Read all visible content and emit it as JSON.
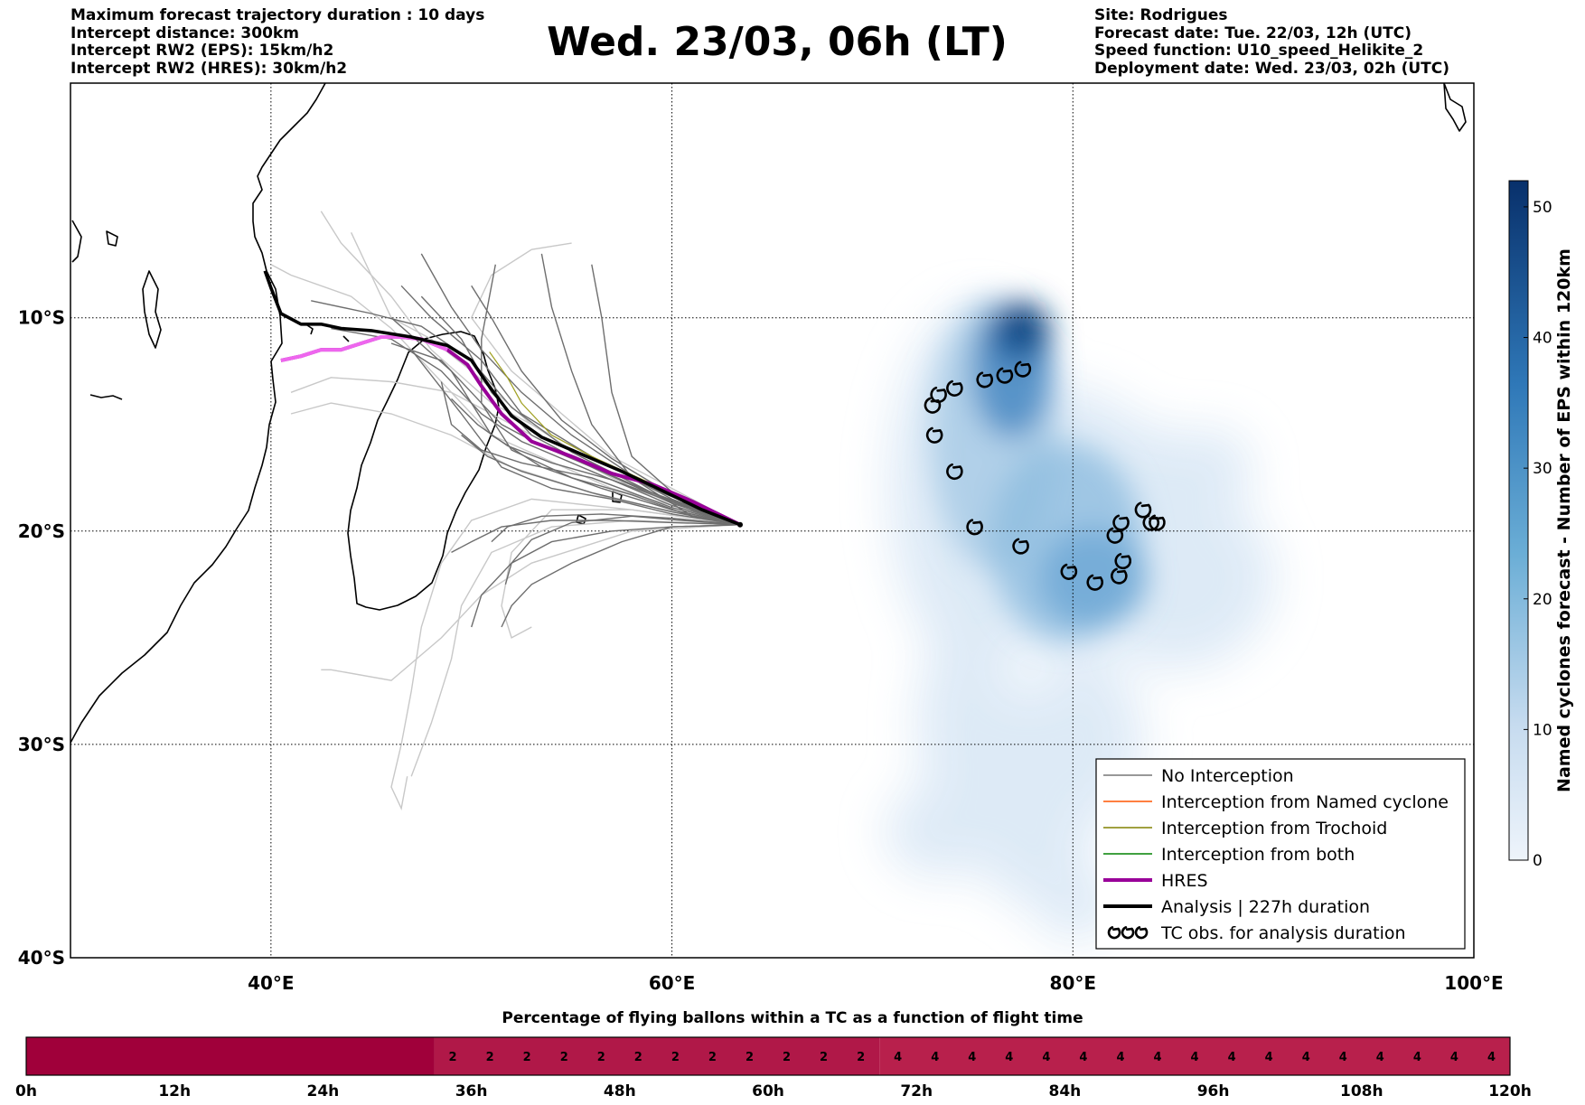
{
  "header": {
    "left_lines": [
      "Maximum forecast trajectory duration : 10 days",
      "Intercept distance: 300km",
      "Intercept RW2 (EPS):  15km/h2",
      "Intercept RW2 (HRES): 30km/h2"
    ],
    "title": "Wed. 23/03, 06h (LT)",
    "right_lines": [
      "Site: Rodrigues",
      "Forecast date: Tue. 22/03, 12h (UTC)",
      "Speed function: U10_speed_Helikite_2",
      "Deployment date: Wed. 23/03, 02h (UTC)"
    ]
  },
  "chart_data": {
    "type": "map",
    "xlim": [
      30,
      100
    ],
    "ylim": [
      -40,
      1
    ],
    "x_ticks": [
      {
        "value": 40,
        "label": "40°E"
      },
      {
        "value": 60,
        "label": "60°E"
      },
      {
        "value": 80,
        "label": "80°E"
      },
      {
        "value": 100,
        "label": "100°E"
      }
    ],
    "y_ticks": [
      {
        "value": -10,
        "label": "10°S"
      },
      {
        "value": -20,
        "label": "20°S"
      },
      {
        "value": -30,
        "label": "30°S"
      },
      {
        "value": -40,
        "label": "40°S"
      }
    ],
    "grid": true,
    "launch_site": {
      "lon": 63.4,
      "lat": -19.7
    },
    "analysis_trajectory": {
      "color": "#000000",
      "points": [
        [
          63.4,
          -19.7
        ],
        [
          61.5,
          -19.0
        ],
        [
          59.5,
          -18.1
        ],
        [
          57.5,
          -17.2
        ],
        [
          55.5,
          -16.4
        ],
        [
          53.5,
          -15.6
        ],
        [
          52.0,
          -14.6
        ],
        [
          50.8,
          -13.1
        ],
        [
          50.0,
          -12.0
        ],
        [
          48.8,
          -11.3
        ],
        [
          47.0,
          -10.9
        ],
        [
          45.0,
          -10.6
        ],
        [
          43.5,
          -10.5
        ],
        [
          42.5,
          -10.3
        ],
        [
          41.5,
          -10.3
        ],
        [
          40.5,
          -9.8
        ],
        [
          40.0,
          -8.6
        ],
        [
          39.7,
          -7.8
        ]
      ]
    },
    "hres_trajectory": {
      "color": "#990099",
      "points": [
        [
          63.4,
          -19.7
        ],
        [
          61.0,
          -18.6
        ],
        [
          59.0,
          -17.8
        ],
        [
          57.0,
          -17.3
        ],
        [
          55.0,
          -16.5
        ],
        [
          53.0,
          -15.8
        ],
        [
          51.5,
          -14.5
        ],
        [
          50.5,
          -13.2
        ],
        [
          49.8,
          -12.2
        ],
        [
          48.8,
          -11.5
        ],
        [
          47.5,
          -11.0
        ],
        [
          46.5,
          -10.9
        ],
        [
          45.5,
          -10.9
        ],
        [
          44.5,
          -11.2
        ],
        [
          43.5,
          -11.5
        ],
        [
          42.5,
          -11.5
        ],
        [
          41.5,
          -11.8
        ],
        [
          40.5,
          -12.0
        ]
      ]
    },
    "hres_early_color": "#ee66ee",
    "eps_trajectories_dark": [
      [
        [
          63.4,
          -19.7
        ],
        [
          60,
          -18.5
        ],
        [
          56,
          -16.5
        ],
        [
          52.5,
          -14.5
        ],
        [
          50.5,
          -12.0
        ],
        [
          48,
          -10.0
        ],
        [
          46.5,
          -8.5
        ]
      ],
      [
        [
          63.4,
          -19.7
        ],
        [
          60,
          -18.7
        ],
        [
          56,
          -17.0
        ],
        [
          53,
          -15.5
        ],
        [
          51,
          -13.5
        ],
        [
          49.5,
          -11.0
        ],
        [
          47.5,
          -9.0
        ]
      ],
      [
        [
          63.4,
          -19.7
        ],
        [
          60,
          -19.0
        ],
        [
          56.5,
          -18.0
        ],
        [
          53.5,
          -17.0
        ],
        [
          51,
          -15.5
        ],
        [
          49,
          -12.5
        ],
        [
          46,
          -10.0
        ]
      ],
      [
        [
          63.4,
          -19.7
        ],
        [
          60,
          -19.2
        ],
        [
          57,
          -18.5
        ],
        [
          54,
          -18.0
        ],
        [
          51.5,
          -17.0
        ],
        [
          49.5,
          -14.5
        ],
        [
          47,
          -11.5
        ]
      ],
      [
        [
          63.4,
          -19.7
        ],
        [
          60,
          -19.6
        ],
        [
          57,
          -19.5
        ],
        [
          54,
          -19.5
        ],
        [
          51.5,
          -19.8
        ],
        [
          50,
          -20.5
        ],
        [
          49,
          -21.0
        ]
      ],
      [
        [
          63.4,
          -19.7
        ],
        [
          60,
          -19.8
        ],
        [
          57,
          -20.0
        ],
        [
          54,
          -20.5
        ],
        [
          52,
          -21.5
        ],
        [
          50.5,
          -23.0
        ],
        [
          50,
          -24.5
        ]
      ],
      [
        [
          63.4,
          -19.7
        ],
        [
          60,
          -19.8
        ],
        [
          57.5,
          -20.5
        ],
        [
          55,
          -21.5
        ],
        [
          53,
          -22.5
        ],
        [
          52,
          -23.5
        ],
        [
          51.5,
          -24.5
        ]
      ],
      [
        [
          63.4,
          -19.7
        ],
        [
          60,
          -18.9
        ],
        [
          56,
          -17.5
        ],
        [
          52.5,
          -16.8
        ],
        [
          50.5,
          -16.2
        ],
        [
          49,
          -15.0
        ],
        [
          48.5,
          -13.0
        ]
      ],
      [
        [
          63.4,
          -19.7
        ],
        [
          61,
          -19.3
        ],
        [
          58,
          -18.3
        ],
        [
          55,
          -17.5
        ],
        [
          52,
          -16.2
        ],
        [
          50.5,
          -14.0
        ],
        [
          50.5,
          -11.0
        ],
        [
          51.2,
          -7.5
        ]
      ],
      [
        [
          63.4,
          -19.7
        ],
        [
          61,
          -19.3
        ],
        [
          58,
          -17.5
        ],
        [
          56,
          -15.0
        ],
        [
          55,
          -12.5
        ],
        [
          54,
          -9.5
        ],
        [
          53.5,
          -7.0
        ]
      ],
      [
        [
          63.4,
          -19.7
        ],
        [
          61,
          -19.0
        ],
        [
          58,
          -16.5
        ],
        [
          57,
          -13.5
        ],
        [
          56.5,
          -10.0
        ],
        [
          56,
          -7.5
        ]
      ],
      [
        [
          63.4,
          -19.7
        ],
        [
          60,
          -19.1
        ],
        [
          56,
          -18.2
        ],
        [
          52.5,
          -17.2
        ],
        [
          50.8,
          -16.5
        ],
        [
          49.5,
          -15.5
        ]
      ],
      [
        [
          63.4,
          -19.7
        ],
        [
          60,
          -18.8
        ],
        [
          56,
          -17.2
        ],
        [
          52.5,
          -15.8
        ],
        [
          50.5,
          -14.5
        ],
        [
          48.5,
          -12.5
        ],
        [
          46,
          -11.0
        ],
        [
          43,
          -10.5
        ]
      ],
      [
        [
          63.4,
          -19.7
        ],
        [
          59,
          -18.2
        ],
        [
          55,
          -16.3
        ],
        [
          52,
          -14.2
        ],
        [
          50,
          -12.0
        ],
        [
          47.5,
          -10.4
        ],
        [
          45,
          -9.8
        ],
        [
          42,
          -9.2
        ]
      ],
      [
        [
          63.4,
          -19.7
        ],
        [
          59,
          -18.0
        ],
        [
          55,
          -15.5
        ],
        [
          52.5,
          -13.5
        ],
        [
          50.5,
          -11.5
        ],
        [
          49,
          -9.5
        ],
        [
          47.5,
          -7.0
        ]
      ],
      [
        [
          63.4,
          -19.7
        ],
        [
          60,
          -19.4
        ],
        [
          56.5,
          -19.2
        ],
        [
          53.5,
          -19.3
        ],
        [
          51.8,
          -19.8
        ],
        [
          51,
          -20.5
        ]
      ],
      [
        [
          63.4,
          -19.7
        ],
        [
          60,
          -18.6
        ],
        [
          56.5,
          -17.2
        ],
        [
          53.5,
          -16.0
        ],
        [
          51.5,
          -15.0
        ],
        [
          50,
          -13.5
        ],
        [
          48.5,
          -12.0
        ],
        [
          46,
          -11.2
        ]
      ],
      [
        [
          63.4,
          -19.7
        ],
        [
          60.5,
          -18.8
        ],
        [
          57,
          -17.6
        ],
        [
          54,
          -16.8
        ],
        [
          51.8,
          -16.0
        ],
        [
          50.3,
          -15.0
        ],
        [
          49,
          -13.8
        ]
      ],
      [
        [
          63.4,
          -19.7
        ],
        [
          60,
          -18.3
        ],
        [
          57,
          -16.6
        ],
        [
          54.5,
          -14.8
        ],
        [
          52.5,
          -12.5
        ],
        [
          51,
          -10.0
        ],
        [
          50,
          -8.5
        ]
      ],
      [
        [
          63.4,
          -19.7
        ],
        [
          60.5,
          -19.5
        ],
        [
          58,
          -19.3
        ],
        [
          55,
          -19.6
        ],
        [
          53,
          -20.4
        ],
        [
          52,
          -21.5
        ],
        [
          51.7,
          -22.5
        ]
      ]
    ],
    "eps_trajectories_light": [
      [
        [
          63.4,
          -19.7
        ],
        [
          57,
          -18.0
        ],
        [
          51,
          -15.5
        ],
        [
          48,
          -12.5
        ],
        [
          46,
          -10.5
        ],
        [
          44,
          -9.0
        ],
        [
          41,
          -8.0
        ],
        [
          40,
          -7.5
        ]
      ],
      [
        [
          63.4,
          -19.7
        ],
        [
          57,
          -17.0
        ],
        [
          51,
          -14.0
        ],
        [
          48,
          -11.5
        ],
        [
          46,
          -9.0
        ],
        [
          43.5,
          -6.5
        ],
        [
          42.5,
          -5.0
        ]
      ],
      [
        [
          63.4,
          -19.7
        ],
        [
          57,
          -17.5
        ],
        [
          52,
          -15.0
        ],
        [
          49,
          -13.5
        ],
        [
          46,
          -13.0
        ],
        [
          43,
          -12.8
        ],
        [
          41,
          -13.5
        ]
      ],
      [
        [
          63.4,
          -19.7
        ],
        [
          57,
          -18.5
        ],
        [
          52,
          -17.0
        ],
        [
          49,
          -15.5
        ],
        [
          46,
          -14.5
        ],
        [
          43,
          -14.0
        ],
        [
          41,
          -14.5
        ]
      ],
      [
        [
          63.4,
          -19.7
        ],
        [
          58,
          -19.0
        ],
        [
          53,
          -18.5
        ],
        [
          50,
          -19.5
        ],
        [
          48.5,
          -21.5
        ],
        [
          47.5,
          -24.5
        ],
        [
          47,
          -27.5
        ],
        [
          46.5,
          -30.0
        ],
        [
          46,
          -32.0
        ],
        [
          46.5,
          -33.0
        ],
        [
          46.8,
          -31.5
        ]
      ],
      [
        [
          63.4,
          -19.7
        ],
        [
          58,
          -19.5
        ],
        [
          54,
          -19.8
        ],
        [
          51,
          -21.0
        ],
        [
          49.5,
          -23.5
        ],
        [
          49,
          -26.0
        ],
        [
          48,
          -29.0
        ],
        [
          47,
          -31.5
        ]
      ],
      [
        [
          63.4,
          -19.7
        ],
        [
          58,
          -20.0
        ],
        [
          53,
          -21.5
        ],
        [
          50.5,
          -23.0
        ],
        [
          48.5,
          -25.0
        ],
        [
          46,
          -27.0
        ],
        [
          43,
          -26.5
        ],
        [
          42.5,
          -26.5
        ]
      ],
      [
        [
          63.4,
          -19.7
        ],
        [
          58,
          -19.0
        ],
        [
          54,
          -19.0
        ],
        [
          52,
          -21.0
        ],
        [
          51.5,
          -23.5
        ],
        [
          52,
          -25.0
        ],
        [
          53,
          -24.5
        ]
      ],
      [
        [
          63.4,
          -19.7
        ],
        [
          58,
          -18.0
        ],
        [
          53,
          -15.0
        ],
        [
          50,
          -12.5
        ],
        [
          48,
          -11.0
        ],
        [
          46,
          -10.0
        ],
        [
          45,
          -8.0
        ],
        [
          44,
          -6.0
        ]
      ],
      [
        [
          63.4,
          -19.7
        ],
        [
          57,
          -16.5
        ],
        [
          52,
          -12.5
        ],
        [
          50,
          -10.0
        ],
        [
          51,
          -8.0
        ],
        [
          53,
          -6.8
        ],
        [
          55,
          -6.5
        ]
      ]
    ],
    "eps_trajectories_olive": [
      [
        [
          59.5,
          -18.0
        ],
        [
          56,
          -16.5
        ],
        [
          54,
          -15.5
        ],
        [
          52.5,
          -14.0
        ],
        [
          51.8,
          -12.8
        ],
        [
          50.9,
          -11.6
        ]
      ]
    ],
    "tc_observations": [
      [
        77.5,
        -12.4
      ],
      [
        76.6,
        -12.7
      ],
      [
        75.6,
        -12.9
      ],
      [
        74.1,
        -13.3
      ],
      [
        73.3,
        -13.6
      ],
      [
        73.0,
        -14.1
      ],
      [
        73.1,
        -15.5
      ],
      [
        74.1,
        -17.2
      ],
      [
        75.1,
        -19.8
      ],
      [
        77.4,
        -20.7
      ],
      [
        79.8,
        -21.9
      ],
      [
        81.1,
        -22.4
      ],
      [
        82.3,
        -22.1
      ],
      [
        82.5,
        -21.4
      ],
      [
        82.1,
        -20.2
      ],
      [
        82.4,
        -19.6
      ],
      [
        83.5,
        -19.0
      ],
      [
        83.9,
        -19.6
      ],
      [
        84.2,
        -19.6
      ]
    ],
    "density": {
      "colorbar_label": "Named cyclones forecast - Number of EPS within 120km",
      "min": 0,
      "max": 52,
      "ticks": [
        0,
        10,
        20,
        30,
        40,
        50
      ],
      "color_low": "#e6eff9",
      "color_high": "#08306b"
    },
    "legend": {
      "position": "lower-right",
      "entries": [
        {
          "label": "No Interception",
          "color": "#777777",
          "kind": "line-thin"
        },
        {
          "label": "Interception from Named cyclone",
          "color": "#ff5500",
          "kind": "line-thin"
        },
        {
          "label": "Interception from Trochoid",
          "color": "#808000",
          "kind": "line-thin"
        },
        {
          "label": "Interception from both",
          "color": "#008000",
          "kind": "line-thin"
        },
        {
          "label": "HRES",
          "color": "#990099",
          "kind": "line-thick"
        },
        {
          "label": "Analysis | 227h duration",
          "color": "#000000",
          "kind": "line-thick"
        },
        {
          "label": "TC obs. for analysis duration",
          "color": "#000000",
          "kind": "symbols"
        }
      ]
    }
  },
  "flight_strip": {
    "title": "Percentage of flying ballons within a TC as a function of flight time",
    "time_range": [
      0,
      120
    ],
    "tick_labels": [
      "0h",
      "12h",
      "24h",
      "36h",
      "48h",
      "60h",
      "72h",
      "84h",
      "96h",
      "108h",
      "120h"
    ],
    "cell_hours": 3,
    "zero_until_h": 33,
    "segments": [
      {
        "start_h": 33,
        "end_h": 69,
        "value": "2",
        "color": "#b01848"
      },
      {
        "start_h": 69,
        "end_h": 120,
        "value": "4",
        "color": "#b8204c"
      }
    ],
    "zero_color": "#a0003a"
  }
}
